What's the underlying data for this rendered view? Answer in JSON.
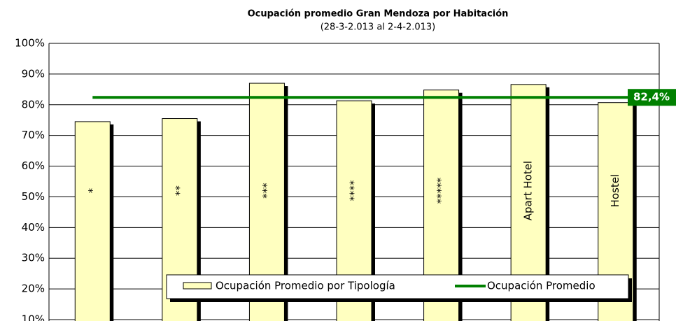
{
  "chart_data": {
    "type": "bar",
    "title": "Ocupación promedio Gran Mendoza por Habitación",
    "subtitle": "(28-3-2.013 al 2-4-2.013)",
    "categories": [
      "*",
      "**",
      "***",
      "****",
      "*****",
      "Apart Hotel",
      "Hostel"
    ],
    "series": [
      {
        "name": "Ocupación Promedio por Tipología",
        "color": "#ffffc0",
        "values": [
          74.5,
          75.5,
          87,
          81.3,
          84.8,
          86.6,
          80.7
        ]
      }
    ],
    "average": {
      "name": "Ocupación Promedio",
      "color": "#008000",
      "value": 82.4,
      "value_label": "82,4%"
    },
    "ylim": [
      10,
      100
    ],
    "yticks": [
      {
        "value": 10,
        "label": "10%"
      },
      {
        "value": 20,
        "label": "20%"
      },
      {
        "value": 30,
        "label": "30%"
      },
      {
        "value": 40,
        "label": "40%"
      },
      {
        "value": 50,
        "label": "50%"
      },
      {
        "value": 60,
        "label": "60%"
      },
      {
        "value": 70,
        "label": "70%"
      },
      {
        "value": 80,
        "label": "80%"
      },
      {
        "value": 90,
        "label": "90%"
      },
      {
        "value": 100,
        "label": "100%"
      }
    ],
    "grid": true
  }
}
